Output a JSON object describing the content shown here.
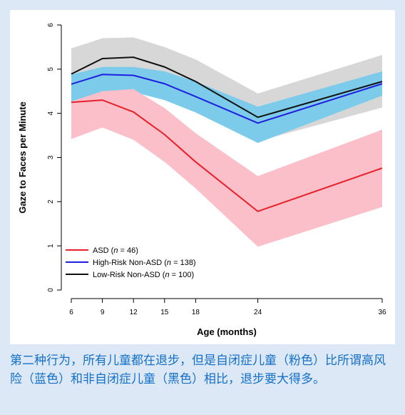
{
  "caption": "第二种行为，所有儿童都在退步，但是自闭症儿童（粉色）比所谓高风险（蓝色）和非自闭症儿童（黑色）相比，退步要大得多。",
  "colors": {
    "background": "#dce8f5",
    "caption": "#1470c8",
    "asd_line": "#e8202a",
    "asd_band": "#fbbfc9",
    "hr_line": "#1f1fe0",
    "hr_band": "#7ccbea",
    "lr_line": "#111111",
    "lr_band": "#d7d7d7"
  },
  "chart_data": {
    "type": "line",
    "xlabel": "Age (months)",
    "ylabel": "Gaze to Faces per Minute",
    "x": [
      6,
      9,
      12,
      15,
      18,
      24,
      36
    ],
    "xlim": [
      6,
      36
    ],
    "ylim": [
      0,
      6
    ],
    "xticks": [
      6,
      9,
      12,
      15,
      18,
      24,
      36
    ],
    "yticks": [
      0,
      1,
      2,
      3,
      4,
      5,
      6
    ],
    "grid": false,
    "legend_position": "bottom-left",
    "series": [
      {
        "name": "ASD",
        "legend_prefix": "ASD (",
        "legend_n": "n",
        "legend_suffix": " = 46)",
        "color": "#e8202a",
        "band_color": "#fbbfc9",
        "values": [
          4.25,
          4.3,
          4.03,
          3.52,
          2.9,
          1.78,
          2.76
        ],
        "lower": [
          3.42,
          3.68,
          3.4,
          2.9,
          2.3,
          0.98,
          1.88
        ],
        "upper": [
          4.27,
          4.5,
          4.55,
          4.12,
          3.55,
          2.58,
          3.63
        ]
      },
      {
        "name": "High-Risk Non-ASD",
        "legend_prefix": "High-Risk Non-ASD (",
        "legend_n": "n",
        "legend_suffix": " = 138)",
        "color": "#1f1fe0",
        "band_color": "#7ccbea",
        "values": [
          4.66,
          4.88,
          4.86,
          4.67,
          4.38,
          3.78,
          4.67
        ],
        "lower": [
          4.22,
          4.5,
          4.48,
          4.3,
          4.02,
          3.33,
          4.4
        ],
        "upper": [
          4.88,
          5.05,
          5.05,
          4.95,
          4.72,
          4.15,
          4.95
        ]
      },
      {
        "name": "Low-Risk Non-ASD",
        "legend_prefix": "Low-Risk Non-ASD (",
        "legend_n": "n",
        "legend_suffix": " = 100)",
        "color": "#111111",
        "band_color": "#d7d7d7",
        "values": [
          4.89,
          5.24,
          5.27,
          5.05,
          4.72,
          3.91,
          4.72
        ],
        "lower": [
          4.3,
          4.7,
          4.72,
          4.52,
          4.22,
          3.37,
          4.13
        ],
        "upper": [
          5.47,
          5.7,
          5.72,
          5.5,
          5.22,
          4.45,
          5.32
        ]
      }
    ]
  }
}
